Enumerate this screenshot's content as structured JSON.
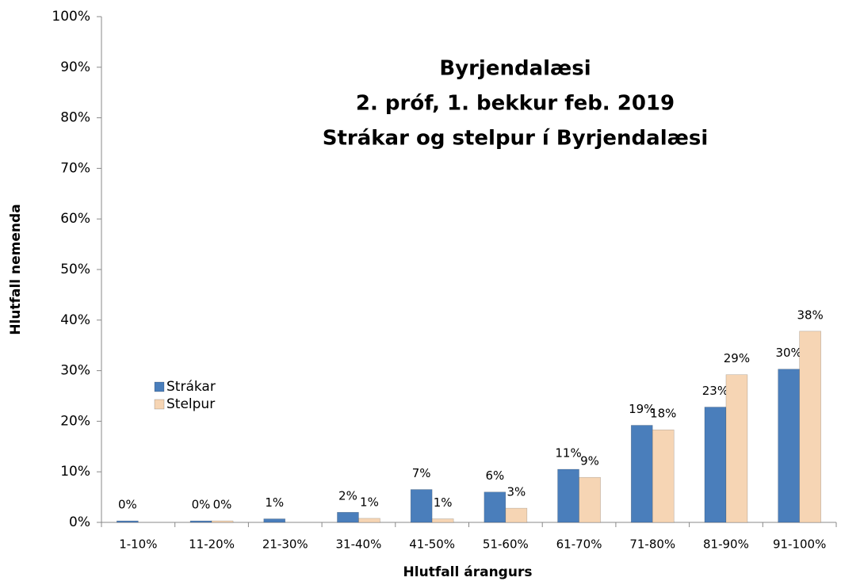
{
  "chart_data": {
    "type": "bar",
    "title": [
      "Byrjendalæsi",
      "2. próf, 1. bekkur feb. 2019",
      "Strákar og stelpur í Byrjendalæsi"
    ],
    "xlabel": "Hlutfall árangurs",
    "ylabel": "Hlutfall nemenda",
    "categories": [
      "1-10%",
      "11-20%",
      "21-30%",
      "31-40%",
      "41-50%",
      "51-60%",
      "61-70%",
      "71-80%",
      "81-90%",
      "91-100%"
    ],
    "series": [
      {
        "name": "Strákar",
        "color": "#4a7ebb",
        "values": [
          0.3,
          0.3,
          0.7,
          2.0,
          6.5,
          6.0,
          10.5,
          19.2,
          22.8,
          30.3
        ],
        "value_labels": [
          "0%",
          "0%",
          "1%",
          "2%",
          "7%",
          "6%",
          "11%",
          "19%",
          "23%",
          "30%"
        ]
      },
      {
        "name": "Stelpur",
        "color": "#f6d5b4",
        "values": [
          null,
          0.3,
          null,
          0.8,
          0.7,
          2.8,
          8.9,
          18.3,
          29.2,
          37.8
        ],
        "value_labels": [
          null,
          "0%",
          null,
          "1%",
          "1%",
          "3%",
          "9%",
          "18%",
          "29%",
          "38%"
        ]
      }
    ],
    "ylim": [
      0,
      100
    ],
    "yticks": [
      {
        "value": 0,
        "label": "0%"
      },
      {
        "value": 10,
        "label": "10%"
      },
      {
        "value": 20,
        "label": "20%"
      },
      {
        "value": 30,
        "label": "30%"
      },
      {
        "value": 40,
        "label": "40%"
      },
      {
        "value": 50,
        "label": "50%"
      },
      {
        "value": 60,
        "label": "60%"
      },
      {
        "value": 70,
        "label": "70%"
      },
      {
        "value": 80,
        "label": "80%"
      },
      {
        "value": 90,
        "label": "90%"
      },
      {
        "value": 100,
        "label": "100%"
      }
    ],
    "legend": "left"
  }
}
